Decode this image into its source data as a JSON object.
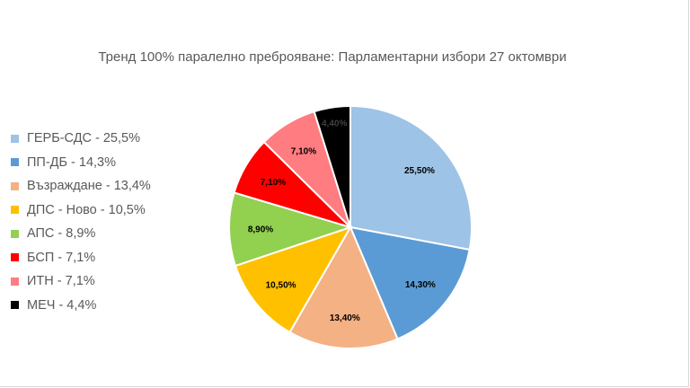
{
  "chart_data": {
    "type": "pie",
    "title": "Тренд 100% паралелно преброяване: Парламентарни избори 27 октомври",
    "legend_position": "left",
    "categories": [
      "ГЕРБ-СДС",
      "ПП-ДБ",
      "Възраждане",
      "ДПС - Ново",
      "АПС",
      "БСП",
      "ИТН",
      "МЕЧ"
    ],
    "legend_labels": [
      "ГЕРБ-СДС - 25,5%",
      "ПП-ДБ - 14,3%",
      "Възраждане - 13,4%",
      "ДПС - Ново - 10,5%",
      "АПС - 8,9%",
      "БСП - 7,1%",
      "ИТН - 7,1%",
      "МЕЧ - 4,4%"
    ],
    "values": [
      25.5,
      14.3,
      13.4,
      10.5,
      8.9,
      7.1,
      7.1,
      4.4
    ],
    "data_labels": [
      "25,50%",
      "14,30%",
      "13,40%",
      "10,50%",
      "8,90%",
      "7,10%",
      "7,10%",
      "4,40%"
    ],
    "colors": [
      "#9dc3e6",
      "#5b9bd5",
      "#f4b183",
      "#ffc000",
      "#92d050",
      "#ff0000",
      "#ff7c80",
      "#000000"
    ]
  }
}
